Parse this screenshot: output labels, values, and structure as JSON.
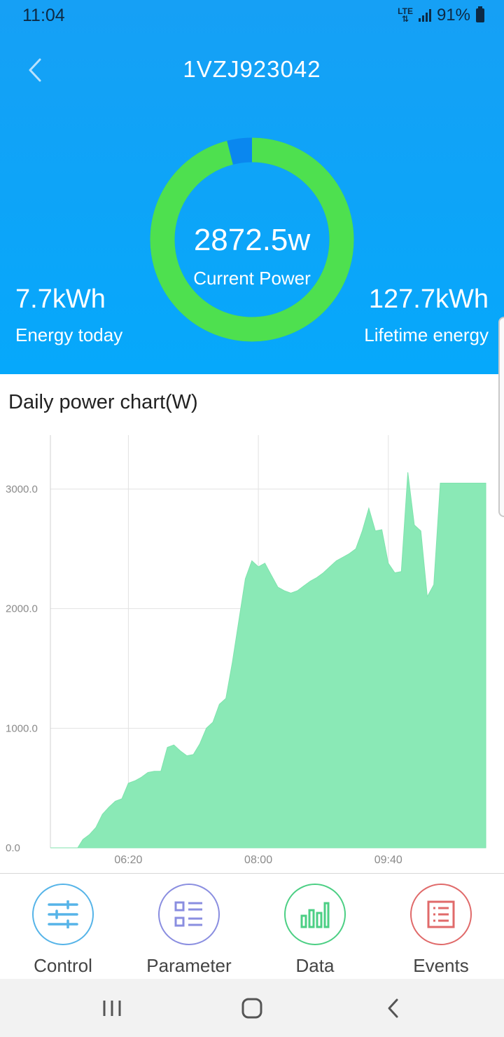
{
  "status_bar": {
    "time": "11:04",
    "network": "LTE",
    "battery": "91%"
  },
  "header": {
    "title": "1VZJ923042"
  },
  "gauge": {
    "value": "2872.5w",
    "label": "Current Power",
    "fraction": 0.96,
    "color_main": "#4ee04f",
    "color_rest": "#0a87ef"
  },
  "stats": {
    "today": {
      "value": "7.7kWh",
      "label": "Energy today"
    },
    "lifetime": {
      "value": "127.7kWh",
      "label": "Lifetime energy"
    }
  },
  "chart": {
    "title": "Daily power chart(W)"
  },
  "chart_data": {
    "type": "area",
    "title": "Daily power chart(W)",
    "ylim": [
      0,
      3000
    ],
    "yticks": [
      "0.0",
      "1000.0",
      "2000.0",
      "3000.0"
    ],
    "xticks": [
      "06:20",
      "08:00",
      "09:40"
    ],
    "xlim": [
      "05:20",
      "10:55"
    ],
    "grid": true,
    "color": "#8ae9b6",
    "series": [
      {
        "x": [
          "05:20",
          "05:41",
          "05:45",
          "05:50",
          "05:55",
          "06:00",
          "06:05",
          "06:10",
          "06:15",
          "06:20",
          "06:25",
          "06:30",
          "06:35",
          "06:40",
          "06:45",
          "06:50",
          "06:55",
          "07:00",
          "07:05",
          "07:10",
          "07:15",
          "07:20",
          "07:25",
          "07:30",
          "07:35",
          "07:40",
          "07:45",
          "07:50",
          "07:55",
          "08:00",
          "08:05",
          "08:10",
          "08:15",
          "08:20",
          "08:25",
          "08:30",
          "08:35",
          "08:40",
          "08:45",
          "08:50",
          "08:55",
          "09:00",
          "09:05",
          "09:10",
          "09:15",
          "09:20",
          "09:25",
          "09:30",
          "09:35",
          "09:40",
          "09:45",
          "09:50",
          "09:55",
          "10:00",
          "10:05",
          "10:10",
          "10:15",
          "10:20",
          "10:25",
          "10:30",
          "10:35",
          "10:40",
          "10:45",
          "10:50",
          "10:55"
        ],
        "y": [
          0,
          0,
          70,
          110,
          170,
          280,
          340,
          390,
          410,
          540,
          560,
          590,
          630,
          640,
          640,
          840,
          860,
          810,
          770,
          780,
          870,
          1000,
          1050,
          1200,
          1250,
          1550,
          1900,
          2250,
          2400,
          2350,
          2380,
          2280,
          2180,
          2150,
          2130,
          2150,
          2190,
          2230,
          2260,
          2300,
          2350,
          2400,
          2430,
          2460,
          2500,
          2650,
          2840,
          2650,
          2660,
          2380,
          2300,
          2310,
          3140,
          2700,
          2650,
          2100,
          2200,
          3050,
          3050,
          3050,
          3050,
          3050,
          3050,
          3050,
          3050
        ]
      }
    ]
  },
  "tabs": [
    {
      "label": "Control",
      "icon": "sliders-icon",
      "color": "#56b4e8"
    },
    {
      "label": "Parameter",
      "icon": "list-grid-icon",
      "color": "#8a8ee0"
    },
    {
      "label": "Data",
      "icon": "bar-chart-icon",
      "color": "#4ccf84"
    },
    {
      "label": "Events",
      "icon": "document-list-icon",
      "color": "#e06a6a"
    }
  ],
  "nav": {
    "recents": "recents-icon",
    "home": "home-icon",
    "back": "back-icon"
  }
}
